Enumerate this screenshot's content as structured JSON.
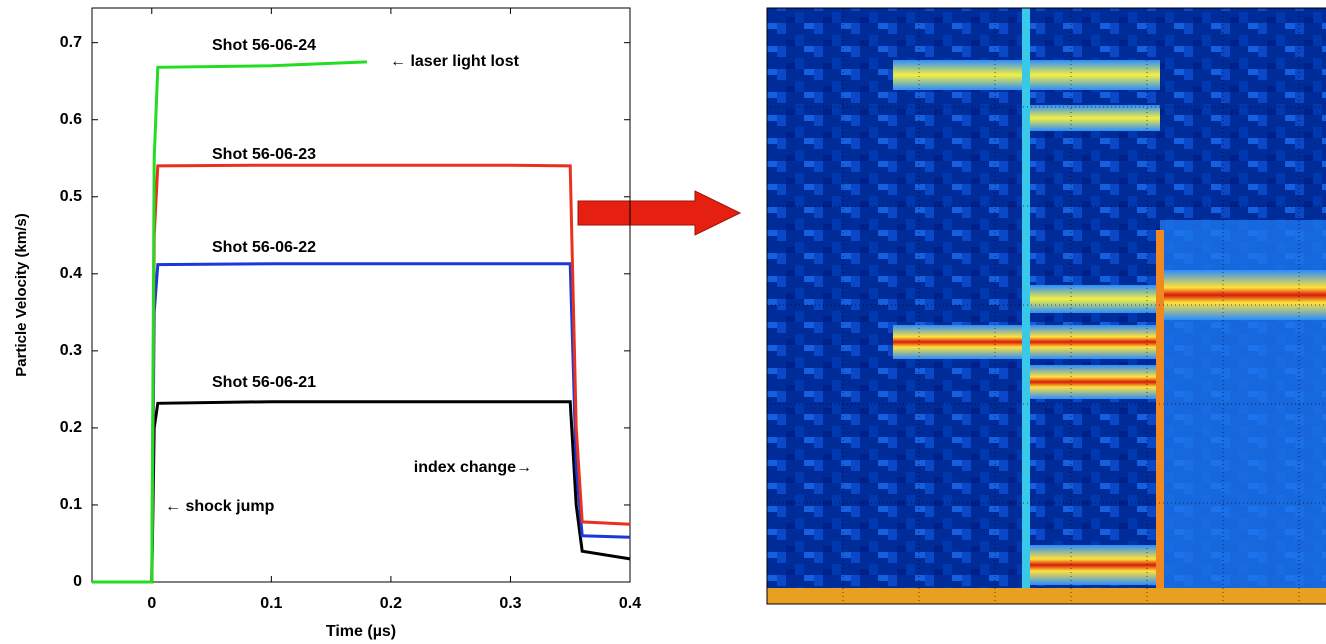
{
  "chart_data": {
    "type": "line",
    "x_label": "Time (µs)",
    "y_label": "Particle Velocity (km/s)",
    "x": [
      -0.05,
      0,
      0.002,
      0.005,
      0.1,
      0.18,
      0.2,
      0.3,
      0.35,
      0.355,
      0.36,
      0.4
    ],
    "series": [
      {
        "name": "Shot 56-06-24",
        "color": "#22dd22",
        "values": [
          0,
          0,
          0.55,
          0.668,
          0.67,
          0.675,
          null,
          null,
          null,
          null,
          null,
          null
        ]
      },
      {
        "name": "Shot 56-06-23",
        "color": "#e8321e",
        "values": [
          0,
          0,
          0.45,
          0.54,
          0.541,
          0.541,
          0.541,
          0.541,
          0.54,
          0.2,
          0.078,
          0.075
        ]
      },
      {
        "name": "Shot 56-06-22",
        "color": "#1a3ad8",
        "values": [
          0,
          0,
          0.35,
          0.412,
          0.413,
          0.413,
          0.413,
          0.413,
          0.413,
          0.15,
          0.06,
          0.058
        ]
      },
      {
        "name": "Shot 56-06-21",
        "color": "#000000",
        "values": [
          0,
          0,
          0.2,
          0.232,
          0.234,
          0.234,
          0.234,
          0.234,
          0.234,
          0.1,
          0.04,
          0.03
        ]
      }
    ],
    "annotations": [
      "← laser light lost",
      "← shock jump",
      "index change→"
    ],
    "xlim": [
      -0.05,
      0.4
    ],
    "xticks": [
      0,
      0.1,
      0.2,
      0.3,
      0.4
    ],
    "ylim": [
      0,
      0.745
    ],
    "yticks": [
      0,
      0.1,
      0.2,
      0.3,
      0.4,
      0.5,
      0.6,
      0.7
    ],
    "grid": false
  }
}
